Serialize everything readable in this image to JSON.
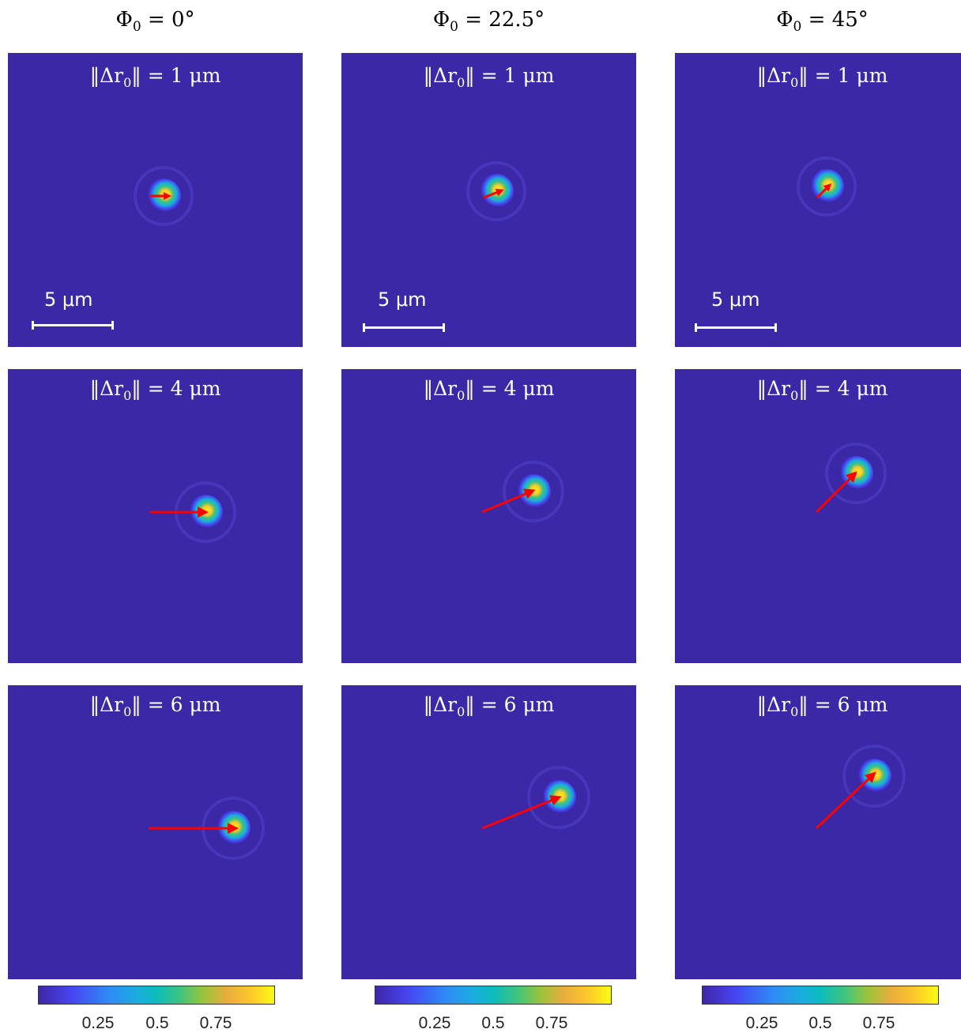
{
  "columns": [
    {
      "title_prefix": "Φ",
      "title_sub": "0",
      "title_value": " = 0°"
    },
    {
      "title_prefix": "Φ",
      "title_sub": "0",
      "title_value": " = 22.5°"
    },
    {
      "title_prefix": "Φ",
      "title_sub": "0",
      "title_value": " = 45°"
    }
  ],
  "rows": [
    {
      "label_prefix": "‖Δr",
      "label_sub": "0",
      "label_value": "‖ = 1 μm"
    },
    {
      "label_prefix": "‖Δr",
      "label_sub": "0",
      "label_value": "‖ = 4 μm"
    },
    {
      "label_prefix": "‖Δr",
      "label_sub": "0",
      "label_value": "‖ = 6 μm"
    }
  ],
  "scale_bar": {
    "label": "5 μm"
  },
  "colorbar": {
    "ticks": [
      "0.25",
      "0.5",
      "0.75"
    ]
  },
  "colors": {
    "background": "#3b28a6",
    "arrow": "#ff0000"
  }
}
